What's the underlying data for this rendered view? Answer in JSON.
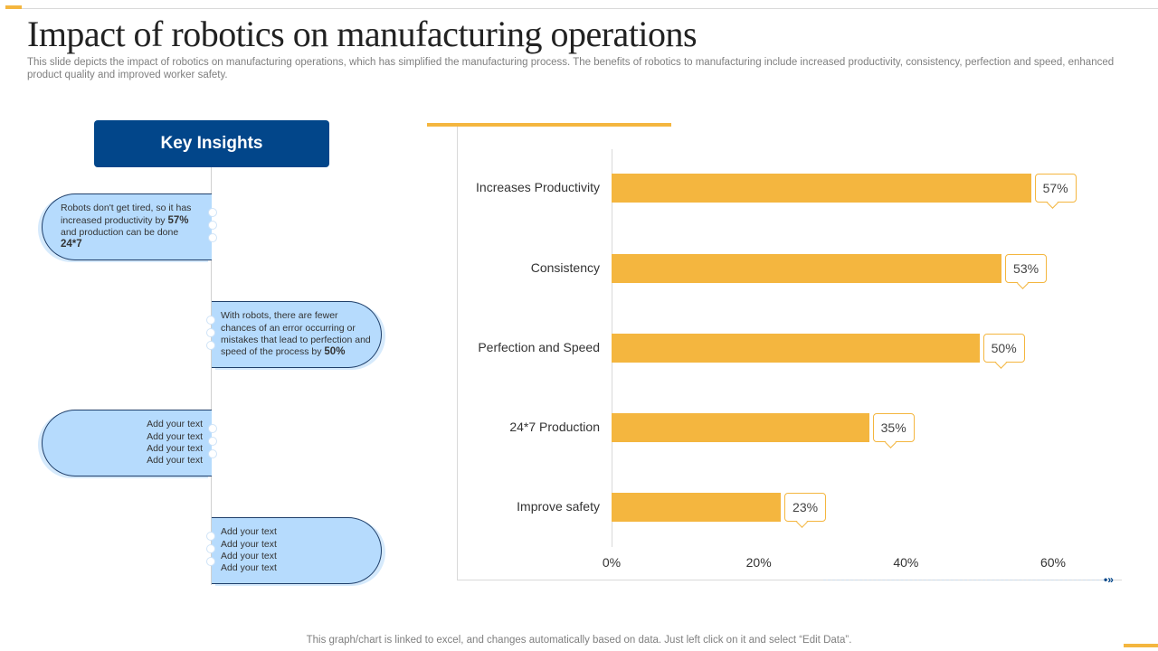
{
  "title": "Impact of robotics on manufacturing operations",
  "subtitle": "This slide depicts the impact of robotics on manufacturing operations, which has simplified the manufacturing process. The benefits of robotics to manufacturing include increased productivity, consistency, perfection and speed, enhanced product quality and improved worker safety.",
  "key_insights": "Key Insights",
  "insights": [
    {
      "pre": "Robots don't get tired, so it has increased productivity by ",
      "b1": "57%",
      "mid": " and production can be done ",
      "b2": "24*7"
    },
    {
      "pre": "With robots, there are fewer chances of an error occurring or mistakes that lead to perfection and speed of the process by ",
      "b1": "50%"
    },
    {
      "lines": [
        "Add your text",
        "Add your text",
        "Add your text",
        "Add your text"
      ]
    },
    {
      "lines": [
        "Add your text",
        "Add your text",
        "Add your text",
        "Add your text"
      ]
    }
  ],
  "footer": "This graph/chart is linked to excel,  and changes automatically based on data. Just left click on it and select “Edit Data”.",
  "colors": {
    "bar": "#f4b63f",
    "header": "#02468a",
    "pill": "#b6dbfd"
  },
  "chart_data": {
    "type": "bar",
    "orientation": "horizontal",
    "categories": [
      "Increases Productivity",
      "Consistency",
      "Perfection and Speed",
      "24*7 Production",
      "Improve  safety"
    ],
    "values": [
      57,
      53,
      50,
      35,
      23
    ],
    "data_labels": [
      "57%",
      "53%",
      "50%",
      "35%",
      "23%"
    ],
    "xlim": [
      0,
      60
    ],
    "xticks": [
      "0%",
      "20%",
      "40%",
      "60%"
    ],
    "grid": false
  }
}
